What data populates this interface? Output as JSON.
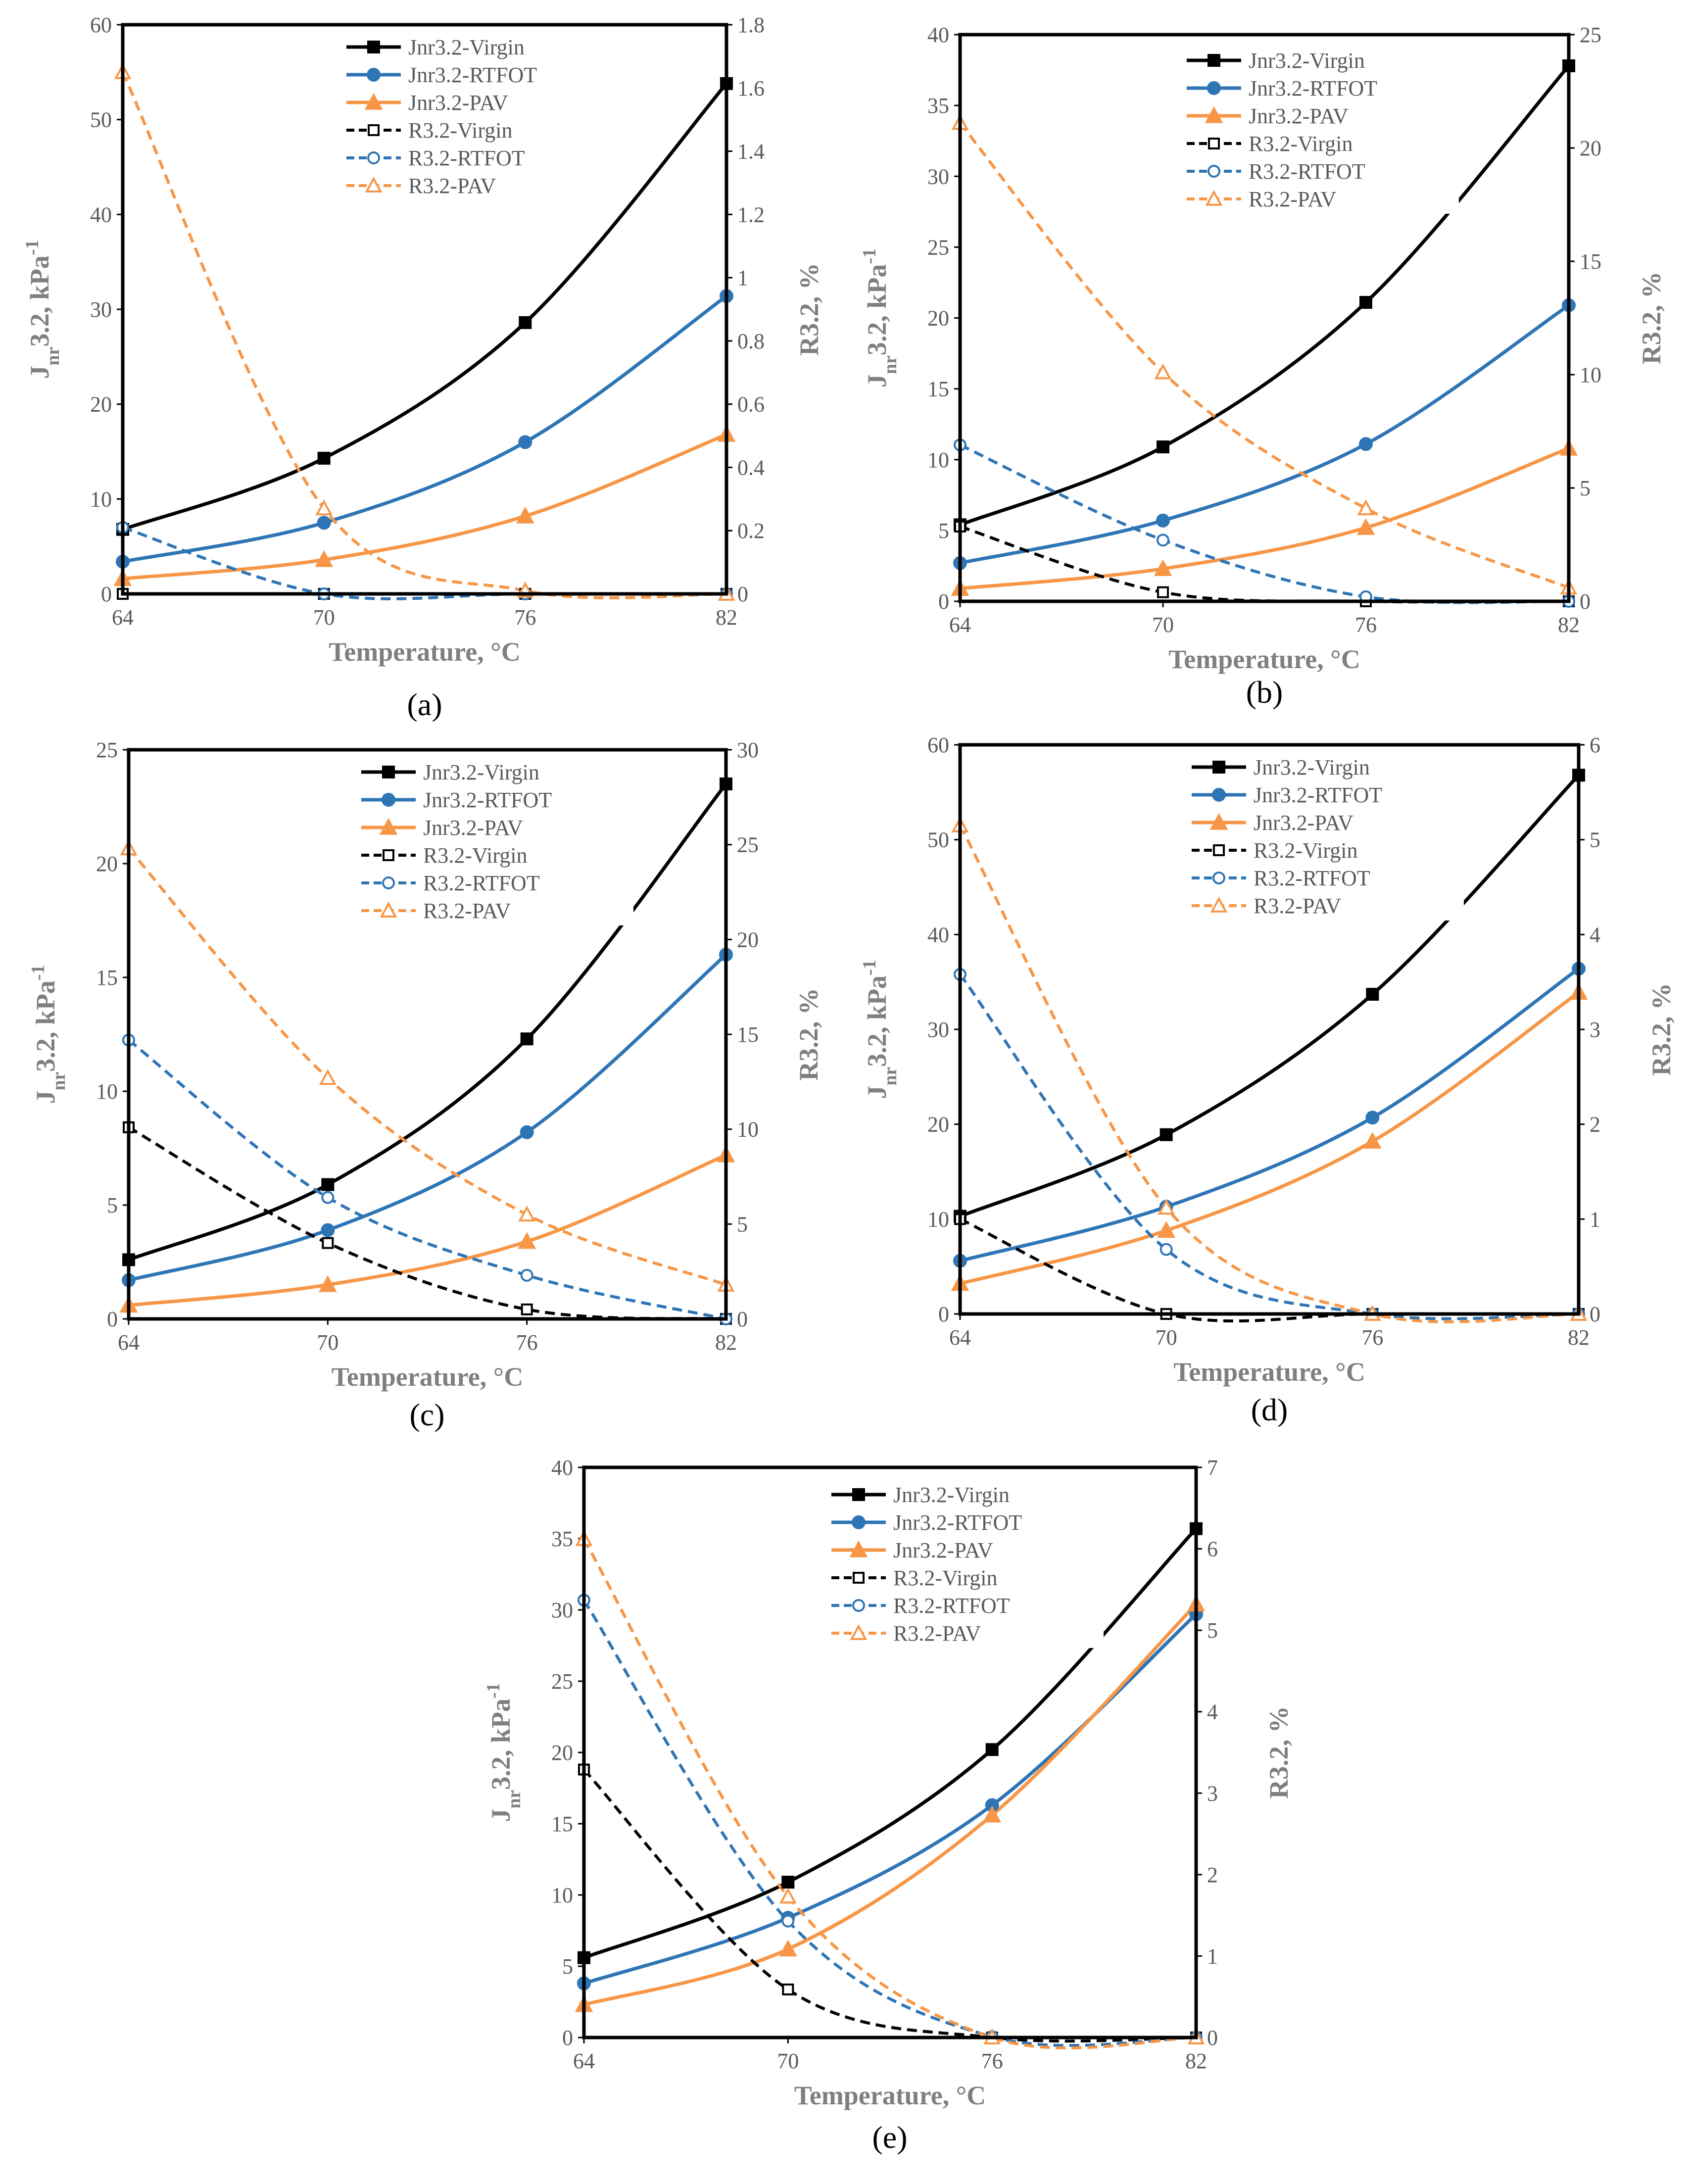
{
  "figure": {
    "colors": {
      "virgin": "#000000",
      "rtfot": "#2e75b6",
      "pav": "#f79646"
    },
    "xlabel": "Temperature, °C",
    "ylabel_left": "Jnr3.2, kPa-1",
    "ylabel_left_parts": {
      "a": "J",
      "b": "nr",
      "c": "3.2, kPa",
      "d": "-1"
    },
    "ylabel_right": "R3.2, %",
    "legend": [
      "Jnr3.2-Virgin",
      "Jnr3.2-RTFOT",
      "Jnr3.2-PAV",
      "R3.2-Virgin",
      "R3.2-RTFOT",
      "R3.2-PAV"
    ]
  },
  "chart_data": [
    {
      "type": "line",
      "caption": "(a)",
      "x": [
        64,
        70,
        76,
        82
      ],
      "xticks": [
        "64",
        "70",
        "76",
        "82"
      ],
      "xlabel": "Temperature, °C",
      "ylabel": "Jnr3.2, kPa-1",
      "y2label": "R3.2, %",
      "ylim": [
        0,
        60
      ],
      "yticks": [
        "0",
        "10",
        "20",
        "30",
        "40",
        "50",
        "60"
      ],
      "y2lim": [
        0,
        1.8
      ],
      "y2ticks": [
        "0",
        "0.2",
        "0.4",
        "0.6",
        "0.8",
        "1",
        "1.2",
        "1.4",
        "1.6",
        "1.8"
      ],
      "series": [
        {
          "name": "Jnr3.2-Virgin",
          "axis": "left",
          "values": [
            6.8,
            14.3,
            28.6,
            53.8
          ]
        },
        {
          "name": "Jnr3.2-RTFOT",
          "axis": "left",
          "values": [
            3.4,
            7.5,
            16.0,
            31.4
          ]
        },
        {
          "name": "Jnr3.2-PAV",
          "axis": "left",
          "values": [
            1.6,
            3.6,
            8.2,
            16.8
          ]
        },
        {
          "name": "R3.2-Virgin",
          "axis": "right",
          "values": [
            0.0,
            0.0,
            0.0,
            0.0
          ]
        },
        {
          "name": "R3.2-RTFOT",
          "axis": "right",
          "values": [
            0.21,
            0.0,
            0.0,
            0.0
          ]
        },
        {
          "name": "R3.2-PAV",
          "axis": "right",
          "values": [
            1.65,
            0.27,
            0.01,
            0.0
          ]
        }
      ]
    },
    {
      "type": "line",
      "caption": "(b)",
      "x": [
        64,
        70,
        76,
        82
      ],
      "xticks": [
        "64",
        "70",
        "76",
        "82"
      ],
      "xlabel": "Temperature, °C",
      "ylabel": "Jnr3.2, kPa-1",
      "y2label": "R3.2, %",
      "ylim": [
        0,
        40
      ],
      "yticks": [
        "0",
        "5",
        "10",
        "15",
        "20",
        "25",
        "30",
        "35",
        "40"
      ],
      "y2lim": [
        0,
        25
      ],
      "y2ticks": [
        "0",
        "5",
        "10",
        "15",
        "20",
        "25"
      ],
      "series": [
        {
          "name": "Jnr3.2-Virgin",
          "axis": "left",
          "values": [
            5.4,
            10.9,
            21.1,
            37.8
          ]
        },
        {
          "name": "Jnr3.2-RTFOT",
          "axis": "left",
          "values": [
            2.7,
            5.7,
            11.1,
            20.9
          ]
        },
        {
          "name": "Jnr3.2-PAV",
          "axis": "left",
          "values": [
            0.9,
            2.3,
            5.2,
            10.8
          ]
        },
        {
          "name": "R3.2-Virgin",
          "axis": "right",
          "values": [
            3.3,
            0.4,
            0.0,
            0.0
          ]
        },
        {
          "name": "R3.2-RTFOT",
          "axis": "right",
          "values": [
            6.9,
            2.7,
            0.2,
            0.0
          ]
        },
        {
          "name": "R3.2-PAV",
          "axis": "right",
          "values": [
            21.1,
            10.1,
            4.1,
            0.6
          ]
        }
      ]
    },
    {
      "type": "line",
      "caption": "(c)",
      "x": [
        64,
        70,
        76,
        82
      ],
      "xticks": [
        "64",
        "70",
        "76",
        "82"
      ],
      "xlabel": "Temperature, °C",
      "ylabel": "Jnr3.2, kPa-1",
      "y2label": "R3.2, %",
      "ylim": [
        0,
        25
      ],
      "yticks": [
        "0",
        "5",
        "10",
        "15",
        "20",
        "25"
      ],
      "y2lim": [
        0,
        30
      ],
      "y2ticks": [
        "0",
        "5",
        "10",
        "15",
        "20",
        "25",
        "30"
      ],
      "series": [
        {
          "name": "Jnr3.2-Virgin",
          "axis": "left",
          "values": [
            2.6,
            5.9,
            12.3,
            23.5
          ]
        },
        {
          "name": "Jnr3.2-RTFOT",
          "axis": "left",
          "values": [
            1.7,
            3.9,
            8.2,
            16.0
          ]
        },
        {
          "name": "Jnr3.2-PAV",
          "axis": "left",
          "values": [
            0.6,
            1.5,
            3.4,
            7.2
          ]
        },
        {
          "name": "R3.2-Virgin",
          "axis": "right",
          "values": [
            10.1,
            4.0,
            0.5,
            0.0
          ]
        },
        {
          "name": "R3.2-RTFOT",
          "axis": "right",
          "values": [
            14.7,
            6.4,
            2.3,
            0.0
          ]
        },
        {
          "name": "R3.2-PAV",
          "axis": "right",
          "values": [
            24.8,
            12.7,
            5.5,
            1.8
          ]
        }
      ]
    },
    {
      "type": "line",
      "caption": "(d)",
      "x": [
        64,
        70,
        76,
        82
      ],
      "xticks": [
        "64",
        "70",
        "76",
        "82"
      ],
      "xlabel": "Temperature, °C",
      "ylabel": "Jnr3.2, kPa-1",
      "y2label": "R3.2, %",
      "ylim": [
        0,
        60
      ],
      "yticks": [
        "0",
        "10",
        "20",
        "30",
        "40",
        "50",
        "60"
      ],
      "y2lim": [
        0,
        6
      ],
      "y2ticks": [
        "0",
        "1",
        "2",
        "3",
        "4",
        "5",
        "6"
      ],
      "series": [
        {
          "name": "Jnr3.2-Virgin",
          "axis": "left",
          "values": [
            10.3,
            18.9,
            33.7,
            56.8
          ]
        },
        {
          "name": "Jnr3.2-RTFOT",
          "axis": "left",
          "values": [
            5.6,
            11.3,
            20.7,
            36.4
          ]
        },
        {
          "name": "Jnr3.2-PAV",
          "axis": "left",
          "values": [
            3.2,
            8.8,
            18.2,
            33.9
          ]
        },
        {
          "name": "R3.2-Virgin",
          "axis": "right",
          "values": [
            1.0,
            0.0,
            0.0,
            0.0
          ]
        },
        {
          "name": "R3.2-RTFOT",
          "axis": "right",
          "values": [
            3.58,
            0.68,
            0.0,
            0.0
          ]
        },
        {
          "name": "R3.2-PAV",
          "axis": "right",
          "values": [
            5.15,
            1.12,
            0.0,
            0.0
          ]
        }
      ]
    },
    {
      "type": "line",
      "caption": "(e)",
      "x": [
        64,
        70,
        76,
        82
      ],
      "xticks": [
        "64",
        "70",
        "76",
        "82"
      ],
      "xlabel": "Temperature, °C",
      "ylabel": "Jnr3.2, kPa-1",
      "y2label": "R3.2, %",
      "ylim": [
        0,
        40
      ],
      "yticks": [
        "0",
        "5",
        "10",
        "15",
        "20",
        "25",
        "30",
        "35",
        "40"
      ],
      "y2lim": [
        0,
        7
      ],
      "y2ticks": [
        "0",
        "1",
        "2",
        "3",
        "4",
        "5",
        "6",
        "7"
      ],
      "series": [
        {
          "name": "Jnr3.2-Virgin",
          "axis": "left",
          "values": [
            5.6,
            10.9,
            20.2,
            35.7
          ]
        },
        {
          "name": "Jnr3.2-RTFOT",
          "axis": "left",
          "values": [
            3.8,
            8.4,
            16.3,
            29.7
          ]
        },
        {
          "name": "Jnr3.2-PAV",
          "axis": "left",
          "values": [
            2.3,
            6.2,
            15.6,
            30.4
          ]
        },
        {
          "name": "R3.2-Virgin",
          "axis": "right",
          "values": [
            3.29,
            0.59,
            0.0,
            0.0
          ]
        },
        {
          "name": "R3.2-RTFOT",
          "axis": "right",
          "values": [
            5.37,
            1.43,
            0.01,
            0.0
          ]
        },
        {
          "name": "R3.2-PAV",
          "axis": "right",
          "values": [
            6.12,
            1.73,
            0.0,
            0.0
          ]
        }
      ]
    }
  ]
}
